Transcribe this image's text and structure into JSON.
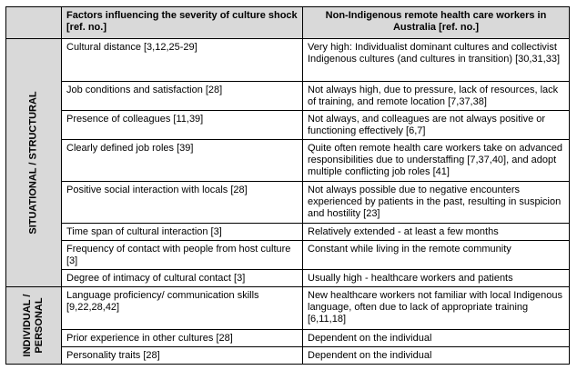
{
  "table": {
    "headers": {
      "factor": "Factors influencing the severity of culture shock [ref. no.]",
      "non_indigenous": "Non-Indigenous remote health care workers in Australia [ref. no.]"
    },
    "categories": {
      "situational": "SITUATIONAL / STRUCTURAL",
      "individual": "INDIVIDUAL / PERSONAL"
    },
    "rows": [
      {
        "factor": "Cultural distance [3,12,25-29]",
        "value": "Very high: Individualist dominant cultures and collectivist Indigenous cultures (and cultures in transition) [30,31,33]"
      },
      {
        "factor": "Job conditions and satisfaction [28]",
        "value": "Not always high, due to pressure, lack of resources, lack of training, and remote location [7,37,38]"
      },
      {
        "factor": "Presence of colleagues [11,39]",
        "value": "Not always, and colleagues are not always positive or functioning effectively [6,7]"
      },
      {
        "factor": "Clearly defined job roles [39]",
        "value": "Quite often remote health care workers take on advanced responsibilities due to understaffing [7,37,40], and adopt multiple conflicting job roles [41]"
      },
      {
        "factor": "Positive social interaction with locals [28]",
        "value": "Not always possible due to negative encounters experienced by patients in the past, resulting in suspicion and hostility [23]"
      },
      {
        "factor": "Time span of cultural interaction [3]",
        "value": "Relatively extended - at least a few months"
      },
      {
        "factor": "Frequency of contact with people from host culture [3]",
        "value": "Constant while living in the remote community"
      },
      {
        "factor": "Degree of intimacy of cultural contact [3]",
        "value": "Usually high - healthcare workers and patients"
      },
      {
        "factor": "Language proficiency/ communication skills [9,22,28,42]",
        "value": "New healthcare workers not familiar with local Indigenous language, often due to lack of appropriate training [6,11,18]"
      },
      {
        "factor": "Prior experience in other cultures [28]",
        "value": "Dependent on the individual"
      },
      {
        "factor": "Personality traits [28]",
        "value": "Dependent on the individual"
      }
    ]
  }
}
